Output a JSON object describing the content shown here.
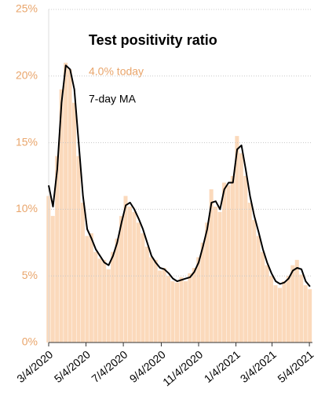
{
  "chart_data": {
    "type": "bar+line",
    "title": "Test positivity ratio",
    "annotations": [
      "4.0% today"
    ],
    "x": [
      "3/4/2020",
      "3/11/2020",
      "3/18/2020",
      "3/25/2020",
      "4/1/2020",
      "4/8/2020",
      "4/15/2020",
      "4/22/2020",
      "4/29/2020",
      "5/6/2020",
      "5/13/2020",
      "5/20/2020",
      "5/27/2020",
      "6/3/2020",
      "6/10/2020",
      "6/17/2020",
      "6/24/2020",
      "7/1/2020",
      "7/8/2020",
      "7/15/2020",
      "7/22/2020",
      "7/29/2020",
      "8/5/2020",
      "8/12/2020",
      "8/19/2020",
      "8/26/2020",
      "9/2/2020",
      "9/9/2020",
      "9/16/2020",
      "9/23/2020",
      "9/30/2020",
      "10/7/2020",
      "10/14/2020",
      "10/21/2020",
      "10/28/2020",
      "11/4/2020",
      "11/11/2020",
      "11/18/2020",
      "11/25/2020",
      "12/2/2020",
      "12/9/2020",
      "12/16/2020",
      "12/23/2020",
      "12/30/2020",
      "1/6/2021",
      "1/13/2021",
      "1/20/2021",
      "1/27/2021",
      "2/3/2021",
      "2/10/2021",
      "2/17/2021",
      "2/24/2021",
      "3/3/2021",
      "3/10/2021",
      "3/17/2021",
      "3/24/2021",
      "3/31/2021",
      "4/7/2021",
      "4/14/2021",
      "4/21/2021",
      "4/28/2021",
      "5/5/2021"
    ],
    "series": [
      {
        "type": "bar",
        "color": "#fbd9bb",
        "values": [
          11,
          9.5,
          14,
          19,
          21,
          20.5,
          18,
          14,
          10.5,
          8,
          8.2,
          6.8,
          6.3,
          6.2,
          5.5,
          6.8,
          7.8,
          9.5,
          11,
          10.2,
          9.8,
          9,
          8.2,
          7.2,
          6.4,
          6.2,
          5.4,
          5.6,
          5,
          4.6,
          4.5,
          4.9,
          4.6,
          5.2,
          5.6,
          6.4,
          7.5,
          9,
          11.5,
          10.2,
          9.8,
          12,
          11.8,
          12.5,
          15.5,
          14.2,
          12.5,
          10.5,
          9.2,
          8,
          6.8,
          5.8,
          5,
          4.3,
          4.1,
          4.6,
          5,
          5.8,
          6.2,
          5.1,
          4.3,
          4.0
        ]
      },
      {
        "type": "line",
        "name": "7-day MA",
        "color": "#000000",
        "values": [
          11.8,
          10.2,
          13,
          18,
          20.8,
          20.5,
          19,
          15,
          11,
          8.5,
          7.8,
          7,
          6.5,
          6,
          5.8,
          6.5,
          7.5,
          9,
          10.3,
          10.5,
          10,
          9.3,
          8.5,
          7.5,
          6.5,
          6,
          5.6,
          5.5,
          5.2,
          4.8,
          4.6,
          4.7,
          4.8,
          4.9,
          5.3,
          6,
          7.2,
          8.5,
          10.5,
          10.6,
          10,
          11.5,
          12,
          12,
          14.5,
          14.8,
          13,
          11,
          9.5,
          8.3,
          7,
          6,
          5.2,
          4.6,
          4.4,
          4.5,
          4.8,
          5.4,
          5.6,
          5.5,
          4.6,
          4.2
        ]
      }
    ],
    "xlim": [
      "3/4/2020",
      "5/9/2021"
    ],
    "xticks": [
      "3/4/2020",
      "5/4/2020",
      "7/4/2020",
      "9/4/2020",
      "11/4/2020",
      "1/4/2021",
      "3/4/2021",
      "5/4/2021"
    ],
    "ylim": [
      0,
      25
    ],
    "yticks": [
      {
        "value": 0,
        "label": "0%"
      },
      {
        "value": 5,
        "label": "5%"
      },
      {
        "value": 10,
        "label": "10%"
      },
      {
        "value": 15,
        "label": "15%"
      },
      {
        "value": 20,
        "label": "20%"
      },
      {
        "value": 25,
        "label": "25%"
      }
    ],
    "grid": true,
    "tick_color": "#e9a56b"
  }
}
